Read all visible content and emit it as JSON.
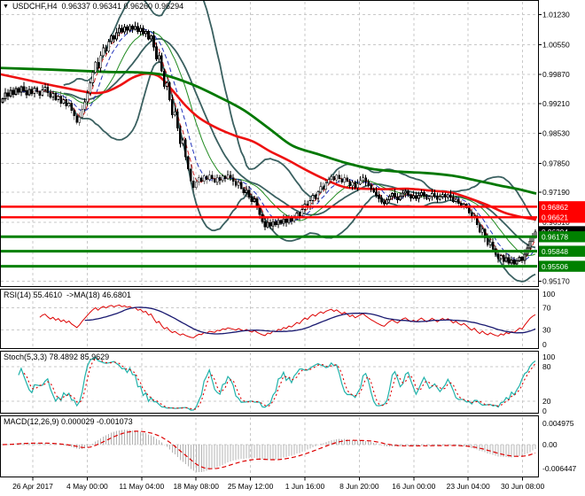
{
  "window_title": "USDCHF,H4",
  "chart_data": {
    "type": "candlestick",
    "symbol": "USDCHF",
    "period": "H4",
    "title_text": "USDCHF,H4  0.96337 0.96341 0.96260 0.96294",
    "ohlc_header": {
      "open": "0.96337",
      "high": "0.96341",
      "low": "0.96260",
      "close": "0.96294"
    },
    "x_labels": [
      "26 Apr 2017",
      "4 May 00:00",
      "11 May 04:00",
      "18 May 08:00",
      "25 May 12:00",
      "1 Jun 16:00",
      "8 Jun 20:00",
      "16 Jun 00:00",
      "23 Jun 04:00",
      "30 Jun 08:00"
    ],
    "price_axis": {
      "ticks": [
        {
          "p": 1.0123,
          "label": "1.01230"
        },
        {
          "p": 1.0055,
          "label": "1.00550"
        },
        {
          "p": 0.9987,
          "label": "0.99870"
        },
        {
          "p": 0.9921,
          "label": "0.99210"
        },
        {
          "p": 0.9853,
          "label": "0.98530"
        },
        {
          "p": 0.9785,
          "label": "0.97850"
        },
        {
          "p": 0.9719,
          "label": "0.97190"
        },
        {
          "p": 0.9651,
          "label": "0.96510"
        },
        {
          "p": 0.9583,
          "label": ""
        },
        {
          "p": 0.9517,
          "label": "0.95170"
        }
      ]
    },
    "closes": [
      0.9932,
      0.9945,
      0.9938,
      0.9951,
      0.9942,
      0.9955,
      0.9947,
      0.9959,
      0.995,
      0.9941,
      0.9953,
      0.9944,
      0.9956,
      0.9948,
      0.994,
      0.9952,
      0.9958,
      0.9946,
      0.9936,
      0.9944,
      0.993,
      0.9938,
      0.9922,
      0.993,
      0.9915,
      0.9922,
      0.9905,
      0.9893,
      0.9878,
      0.989,
      0.9908,
      0.9925,
      0.9945,
      0.9968,
      0.9992,
      1.0015,
      1.0002,
      1.003,
      1.0048,
      1.004,
      1.0062,
      1.0075,
      1.0068,
      1.0082,
      1.0092,
      1.0084,
      1.0095,
      1.0088,
      1.0098,
      1.009,
      1.0096,
      1.0085,
      1.0092,
      1.008,
      1.0085,
      1.0068,
      1.0075,
      1.005,
      1.0022,
      1.003,
      0.9995,
      0.996,
      0.9968,
      0.993,
      0.9895,
      0.9902,
      0.9865,
      0.983,
      0.9838,
      0.98,
      0.9772,
      0.9745,
      0.973,
      0.9742,
      0.9752,
      0.9744,
      0.9756,
      0.9748,
      0.9758,
      0.975,
      0.9742,
      0.9753,
      0.9746,
      0.9756,
      0.975,
      0.9758,
      0.9752,
      0.9744,
      0.9735,
      0.9742,
      0.9728,
      0.9718,
      0.9724,
      0.9708,
      0.9698,
      0.9704,
      0.9685,
      0.9668,
      0.9652,
      0.964,
      0.965,
      0.9642,
      0.9652,
      0.9645,
      0.9655,
      0.9648,
      0.9658,
      0.965,
      0.966,
      0.9653,
      0.9662,
      0.9672,
      0.9665,
      0.968,
      0.9692,
      0.9685,
      0.97,
      0.9712,
      0.9705,
      0.972,
      0.9732,
      0.9726,
      0.974,
      0.9748,
      0.9755,
      0.9747,
      0.9758,
      0.975,
      0.9742,
      0.9752,
      0.9744,
      0.9734,
      0.9742,
      0.973,
      0.9738,
      0.9746,
      0.9752,
      0.9743,
      0.9735,
      0.9727,
      0.972,
      0.9712,
      0.9705,
      0.9697,
      0.9693,
      0.9702,
      0.971,
      0.9716,
      0.9708,
      0.9702,
      0.971,
      0.9717,
      0.9721,
      0.9713,
      0.9706,
      0.9711,
      0.9705,
      0.9712,
      0.9718,
      0.9711,
      0.9704,
      0.9709,
      0.9716,
      0.971,
      0.9703,
      0.9709,
      0.9714,
      0.9708,
      0.9713,
      0.9707,
      0.9698,
      0.9703,
      0.9694,
      0.9688,
      0.9692,
      0.9684,
      0.9672,
      0.966,
      0.9665,
      0.9645,
      0.9628,
      0.9635,
      0.9615,
      0.96,
      0.9606,
      0.959,
      0.9578,
      0.9568,
      0.9575,
      0.9562,
      0.957,
      0.9558,
      0.9565,
      0.9556,
      0.9563,
      0.9571,
      0.9564,
      0.9578,
      0.9592,
      0.9608,
      0.962,
      0.9629
    ],
    "ma_red_anchors": [
      [
        0,
        0.9988
      ],
      [
        30,
        0.9975
      ],
      [
        60,
        0.9962
      ],
      [
        90,
        0.995
      ],
      [
        105,
        0.9945
      ],
      [
        120,
        0.9948
      ],
      [
        135,
        0.9962
      ],
      [
        150,
        0.998
      ],
      [
        165,
        0.9989
      ],
      [
        180,
        0.9982
      ],
      [
        195,
        0.995
      ],
      [
        210,
        0.9915
      ],
      [
        225,
        0.9888
      ],
      [
        245,
        0.9865
      ],
      [
        265,
        0.9848
      ],
      [
        285,
        0.9835
      ],
      [
        305,
        0.9812
      ],
      [
        325,
        0.9792
      ],
      [
        345,
        0.977
      ],
      [
        365,
        0.975
      ],
      [
        385,
        0.9733
      ],
      [
        400,
        0.9728
      ],
      [
        430,
        0.9726
      ],
      [
        460,
        0.9727
      ],
      [
        490,
        0.9722
      ],
      [
        510,
        0.9718
      ],
      [
        530,
        0.9705
      ],
      [
        550,
        0.969
      ],
      [
        570,
        0.9672
      ],
      [
        590,
        0.9662
      ],
      [
        605,
        0.9657
      ]
    ],
    "ma_green_anchors": [
      [
        0,
        1.0002
      ],
      [
        60,
        0.9998
      ],
      [
        120,
        0.9993
      ],
      [
        155,
        0.9992
      ],
      [
        185,
        0.9986
      ],
      [
        215,
        0.9966
      ],
      [
        245,
        0.9938
      ],
      [
        275,
        0.9906
      ],
      [
        305,
        0.9862
      ],
      [
        330,
        0.9825
      ],
      [
        360,
        0.9805
      ],
      [
        390,
        0.9786
      ],
      [
        420,
        0.9772
      ],
      [
        450,
        0.9766
      ],
      [
        480,
        0.9763
      ],
      [
        510,
        0.9757
      ],
      [
        535,
        0.9747
      ],
      [
        560,
        0.9736
      ],
      [
        585,
        0.9726
      ],
      [
        605,
        0.9716
      ]
    ],
    "levels": {
      "resistance": [
        {
          "price": 0.96862,
          "label": "0.96862"
        },
        {
          "price": 0.96621,
          "label": "0.96621"
        }
      ],
      "support": [
        {
          "price": 0.96178,
          "label": "0.96178"
        },
        {
          "price": 0.95848,
          "label": "0.95848"
        },
        {
          "price": 0.95506,
          "label": "0.95506"
        }
      ],
      "current": {
        "price": 0.96294,
        "label": "0.96294"
      }
    },
    "indicators": {
      "rsi": {
        "label": "RSI(14) 55.4610  ->MA(18) 46.6801",
        "period": 14,
        "ma_period": 18,
        "value": "55.4610",
        "ma_value": "46.6801",
        "axis_labels": [
          {
            "v": 100,
            "label": "100"
          },
          {
            "v": 70,
            "label": "70"
          },
          {
            "v": 30,
            "label": "30"
          },
          {
            "v": 0,
            "label": "0"
          }
        ],
        "level_lines": [
          70,
          30
        ]
      },
      "stoch": {
        "label": "Stoch(5,3,3) 78.4892 85.9629",
        "k_period": 5,
        "k_slowing": 3,
        "d_period": 3,
        "value_k": "78.4892",
        "value_d": "85.9629",
        "axis_labels": [
          {
            "v": 100,
            "label": "100"
          },
          {
            "v": 80,
            "label": "80"
          },
          {
            "v": 20,
            "label": "20"
          },
          {
            "v": 0,
            "label": "0"
          }
        ],
        "level_lines": [
          80,
          20
        ]
      },
      "macd": {
        "label": "MACD(12,26,9) 0.000029 -0.001073",
        "fast": 12,
        "slow": 26,
        "signal": 9,
        "value": "0.000029",
        "signal_value": "-0.001073",
        "axis_labels": [
          {
            "pos": "top",
            "label": "0.004975"
          },
          {
            "pos": "zero",
            "label": "0.00"
          },
          {
            "pos": "bottom",
            "label": "-0.006447"
          }
        ]
      }
    },
    "colors": {
      "background": "#ffffff",
      "grid": "#c9c9c9",
      "border": "#000000",
      "text": "#000000",
      "candle": "#000000",
      "bb": "#3a6060",
      "ma_red": "#ee1111",
      "ma_green": "#007800",
      "thin_red": "#cc2222",
      "thin_blue": "#2233bb",
      "thin_green": "#1f8a1f",
      "level_resistance": "#ff0000",
      "level_support": "#008000",
      "badge_current": "#000000",
      "rsi": "#dd0000",
      "rsi_ma": "#191970",
      "stoch_k": "#20b2aa",
      "stoch_d": "#dd0000",
      "macd_hist": "#b4b4b4",
      "macd_signal": "#dd0000"
    }
  }
}
